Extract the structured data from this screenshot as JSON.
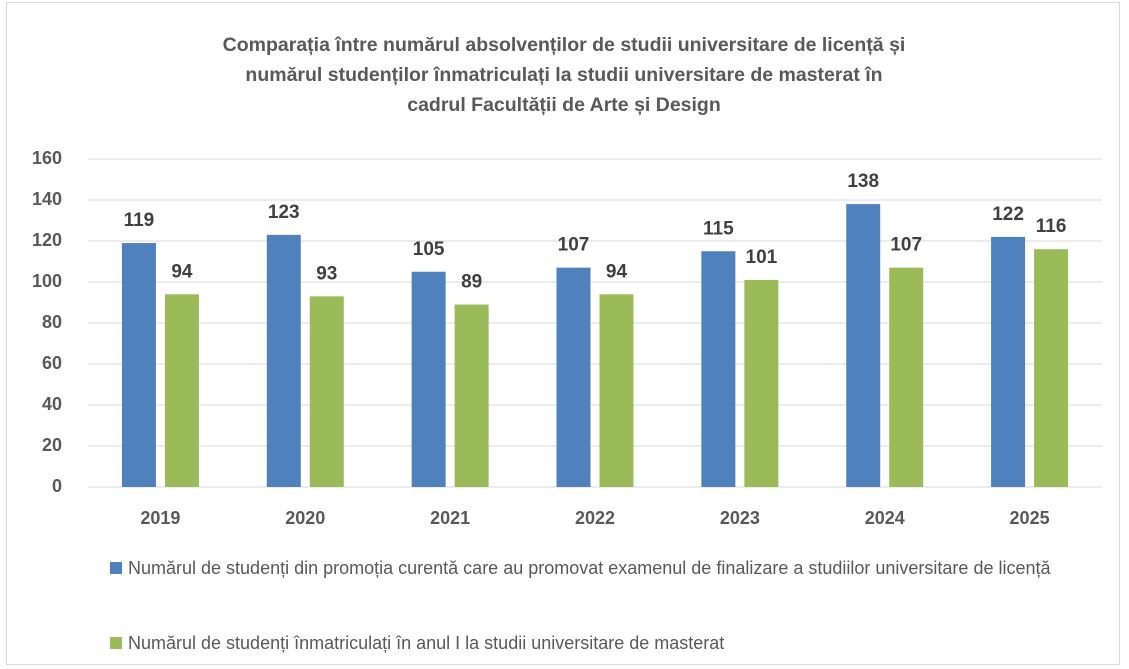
{
  "chart_data": {
    "type": "bar",
    "title": "Comparația între numărul absolvenților de studii universitare de licență și numărul studenților înmatriculați la studii universitare de masterat în cadrul Facultății de Arte și Design",
    "categories": [
      "2019",
      "2020",
      "2021",
      "2022",
      "2023",
      "2024",
      "2025"
    ],
    "series": [
      {
        "name": "Numărul de studenți din promoția curentă care au promovat examenul de finalizare a studiilor universitare de licență",
        "color": "#4f81bd",
        "values": [
          119,
          123,
          105,
          107,
          115,
          138,
          122
        ]
      },
      {
        "name": "Numărul de studenți înmatriculați în anul I la studii universitare de masterat",
        "color": "#9bbb59",
        "values": [
          94,
          93,
          89,
          94,
          101,
          107,
          116
        ]
      }
    ],
    "ylim": [
      0,
      160
    ],
    "yticks": [
      0,
      20,
      40,
      60,
      80,
      100,
      120,
      140,
      160
    ],
    "grid": true,
    "legend": "bottom"
  }
}
